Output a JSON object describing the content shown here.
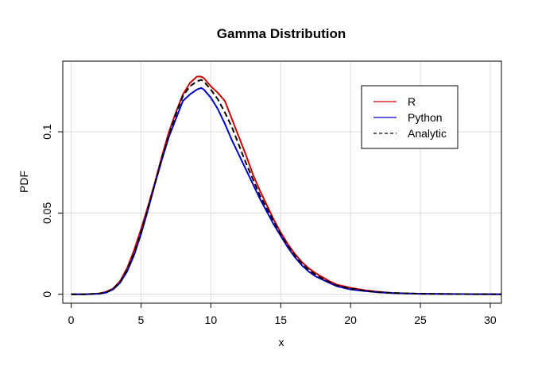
{
  "chart_data": {
    "type": "line",
    "title": "Gamma Distribution",
    "xlabel": "x",
    "ylabel": "PDF",
    "xlim": [
      -0.6,
      30.8
    ],
    "ylim": [
      -0.0055,
      0.1435
    ],
    "grid": true,
    "legend_position": "top-right",
    "x_ticks": [
      {
        "value": 0,
        "label": "0"
      },
      {
        "value": 5,
        "label": "5"
      },
      {
        "value": 10,
        "label": "10"
      },
      {
        "value": 15,
        "label": "15"
      },
      {
        "value": 20,
        "label": "20"
      },
      {
        "value": 25,
        "label": "25"
      },
      {
        "value": 30,
        "label": "30"
      }
    ],
    "y_ticks": [
      {
        "value": 0,
        "label": "0"
      },
      {
        "value": 0.05,
        "label": "0.05"
      },
      {
        "value": 0.1,
        "label": "0.1"
      }
    ],
    "series": [
      {
        "name": "R",
        "color": "#cc0000",
        "dash": "solid",
        "points": [
          [
            0,
            0
          ],
          [
            1,
            0
          ],
          [
            2,
            0.0005
          ],
          [
            2.5,
            0.0015
          ],
          [
            3,
            0.0035
          ],
          [
            3.5,
            0.008
          ],
          [
            4,
            0.016
          ],
          [
            4.5,
            0.027
          ],
          [
            5,
            0.04
          ],
          [
            5.5,
            0.054
          ],
          [
            6,
            0.069
          ],
          [
            6.5,
            0.085
          ],
          [
            7,
            0.1
          ],
          [
            7.5,
            0.112
          ],
          [
            8,
            0.123
          ],
          [
            8.5,
            0.13
          ],
          [
            9,
            0.134
          ],
          [
            9.3,
            0.134
          ],
          [
            9.5,
            0.133
          ],
          [
            10,
            0.128
          ],
          [
            10.5,
            0.124
          ],
          [
            11,
            0.119
          ],
          [
            11.5,
            0.108
          ],
          [
            12,
            0.097
          ],
          [
            12.5,
            0.086
          ],
          [
            13,
            0.074
          ],
          [
            13.5,
            0.064
          ],
          [
            14,
            0.055
          ],
          [
            14.5,
            0.046
          ],
          [
            15,
            0.038
          ],
          [
            15.5,
            0.031
          ],
          [
            16,
            0.025
          ],
          [
            16.5,
            0.02
          ],
          [
            17,
            0.016
          ],
          [
            17.5,
            0.013
          ],
          [
            18,
            0.0105
          ],
          [
            18.5,
            0.008
          ],
          [
            19,
            0.006
          ],
          [
            20,
            0.004
          ],
          [
            21,
            0.0025
          ],
          [
            22,
            0.0015
          ],
          [
            23,
            0.0008
          ],
          [
            25,
            0.0003
          ],
          [
            28,
            0.0001
          ],
          [
            31,
            0
          ]
        ]
      },
      {
        "name": "Python",
        "color": "#0000cc",
        "dash": "solid",
        "points": [
          [
            0,
            0
          ],
          [
            1,
            0
          ],
          [
            2,
            0.0003
          ],
          [
            2.5,
            0.001
          ],
          [
            3,
            0.003
          ],
          [
            3.5,
            0.007
          ],
          [
            4,
            0.014
          ],
          [
            4.5,
            0.024
          ],
          [
            5,
            0.037
          ],
          [
            5.5,
            0.052
          ],
          [
            6,
            0.068
          ],
          [
            6.5,
            0.083
          ],
          [
            7,
            0.097
          ],
          [
            7.5,
            0.108
          ],
          [
            8,
            0.119
          ],
          [
            8.5,
            0.123
          ],
          [
            9,
            0.126
          ],
          [
            9.3,
            0.127
          ],
          [
            9.5,
            0.126
          ],
          [
            10,
            0.121
          ],
          [
            10.5,
            0.114
          ],
          [
            11,
            0.105
          ],
          [
            11.5,
            0.095
          ],
          [
            12,
            0.086
          ],
          [
            12.5,
            0.077
          ],
          [
            13,
            0.068
          ],
          [
            13.5,
            0.059
          ],
          [
            14,
            0.051
          ],
          [
            14.5,
            0.043
          ],
          [
            15,
            0.036
          ],
          [
            15.5,
            0.029
          ],
          [
            16,
            0.023
          ],
          [
            16.5,
            0.018
          ],
          [
            17,
            0.014
          ],
          [
            17.5,
            0.011
          ],
          [
            18,
            0.009
          ],
          [
            18.5,
            0.007
          ],
          [
            19,
            0.005
          ],
          [
            20,
            0.003
          ],
          [
            21,
            0.002
          ],
          [
            22,
            0.0012
          ],
          [
            23,
            0.0007
          ],
          [
            25,
            0.0003
          ],
          [
            28,
            0.0001
          ],
          [
            31,
            0
          ]
        ]
      },
      {
        "name": "Analytic",
        "color": "#000000",
        "dash": "dashed",
        "points": [
          [
            0,
            0
          ],
          [
            1,
            0
          ],
          [
            2,
            0.0004
          ],
          [
            2.5,
            0.0012
          ],
          [
            3,
            0.0033
          ],
          [
            3.5,
            0.0075
          ],
          [
            4,
            0.015
          ],
          [
            4.5,
            0.025
          ],
          [
            5,
            0.038
          ],
          [
            5.5,
            0.053
          ],
          [
            6,
            0.068
          ],
          [
            6.5,
            0.084
          ],
          [
            7,
            0.098
          ],
          [
            7.5,
            0.111
          ],
          [
            8,
            0.122
          ],
          [
            8.5,
            0.128
          ],
          [
            9,
            0.131
          ],
          [
            9.3,
            0.132
          ],
          [
            9.5,
            0.131
          ],
          [
            10,
            0.126
          ],
          [
            10.5,
            0.12
          ],
          [
            11,
            0.112
          ],
          [
            11.5,
            0.103
          ],
          [
            12,
            0.092
          ],
          [
            12.5,
            0.081
          ],
          [
            13,
            0.071
          ],
          [
            13.5,
            0.061
          ],
          [
            14,
            0.053
          ],
          [
            14.5,
            0.045
          ],
          [
            15,
            0.037
          ],
          [
            15.5,
            0.03
          ],
          [
            16,
            0.024
          ],
          [
            16.5,
            0.019
          ],
          [
            17,
            0.015
          ],
          [
            17.5,
            0.012
          ],
          [
            18,
            0.0095
          ],
          [
            18.5,
            0.0075
          ],
          [
            19,
            0.0055
          ],
          [
            20,
            0.0035
          ],
          [
            21,
            0.0022
          ],
          [
            22,
            0.0013
          ],
          [
            23,
            0.0008
          ],
          [
            25,
            0.0003
          ],
          [
            28,
            0.0001
          ],
          [
            31,
            0
          ]
        ]
      }
    ]
  }
}
